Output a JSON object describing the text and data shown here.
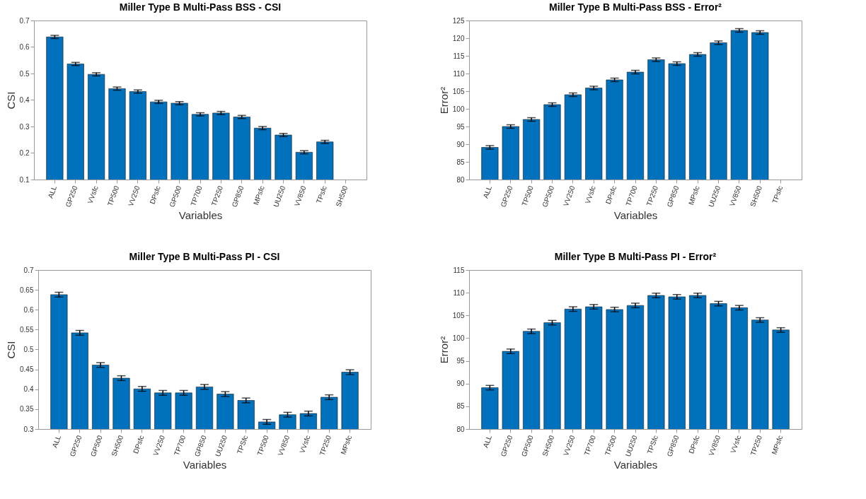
{
  "chart_data": [
    {
      "type": "bar",
      "title": "Miller Type B Multi-Pass BSS - CSI",
      "xlabel": "Variables",
      "ylabel": "CSI",
      "categories": [
        "ALL",
        "GP250",
        "VVsfc",
        "TP500",
        "VV250",
        "DPsfc",
        "GP500",
        "TP700",
        "TP250",
        "GP850",
        "MPsfc",
        "UU250",
        "VV850",
        "TPsfc",
        "SH500"
      ],
      "series": [
        {
          "color": "#0072bd",
          "values": [
            0.638,
            0.536,
            0.497,
            0.443,
            0.432,
            0.393,
            0.388,
            0.346,
            0.351,
            0.336,
            0.294,
            0.268,
            0.203,
            0.242,
            null
          ],
          "errors": [
            0.006,
            0.006,
            0.006,
            0.006,
            0.006,
            0.006,
            0.006,
            0.006,
            0.006,
            0.006,
            0.006,
            0.006,
            0.006,
            0.006,
            null
          ]
        }
      ],
      "ylim": [
        0.1,
        0.7
      ],
      "yticks": [
        0.1,
        0.2,
        0.3,
        0.4,
        0.5,
        0.6,
        0.7
      ],
      "grid": false
    },
    {
      "type": "bar",
      "title": "Miller Type B Multi-Pass BSS - Error²",
      "xlabel": "Variables",
      "ylabel": "Error²",
      "categories": [
        "ALL",
        "GP250",
        "TP500",
        "GP500",
        "VV250",
        "VVsfc",
        "DPsfc",
        "TP700",
        "TP250",
        "GP850",
        "MPsfc",
        "UU250",
        "VV850",
        "SH500",
        "TPsfc"
      ],
      "series": [
        {
          "color": "#0072bd",
          "values": [
            89.1,
            95.0,
            97.0,
            101.2,
            104.0,
            105.9,
            108.2,
            110.4,
            113.9,
            112.8,
            115.4,
            118.7,
            122.2,
            121.6,
            null
          ],
          "errors": [
            0.5,
            0.5,
            0.5,
            0.5,
            0.5,
            0.5,
            0.5,
            0.5,
            0.5,
            0.5,
            0.5,
            0.5,
            0.5,
            0.5,
            null
          ]
        }
      ],
      "ylim": [
        80,
        125
      ],
      "yticks": [
        80,
        85,
        90,
        95,
        100,
        105,
        110,
        115,
        120,
        125
      ],
      "grid": false
    },
    {
      "type": "bar",
      "title": "Miller Type B Multi-Pass PI - CSI",
      "xlabel": "Variables",
      "ylabel": "CSI",
      "categories": [
        "ALL",
        "GP250",
        "GP500",
        "SH500",
        "DPsfc",
        "VV250",
        "TP700",
        "GP850",
        "UU250",
        "TPSfc",
        "TP500",
        "VV850",
        "VVsfc",
        "TP250",
        "MPsfc"
      ],
      "series": [
        {
          "color": "#0072bd",
          "values": [
            0.638,
            0.542,
            0.461,
            0.428,
            0.401,
            0.391,
            0.391,
            0.406,
            0.388,
            0.372,
            0.318,
            0.336,
            0.339,
            0.38,
            0.443
          ],
          "errors": [
            0.006,
            0.006,
            0.006,
            0.006,
            0.006,
            0.006,
            0.006,
            0.006,
            0.006,
            0.006,
            0.006,
            0.006,
            0.006,
            0.006,
            0.006
          ]
        }
      ],
      "ylim": [
        0.3,
        0.7
      ],
      "yticks": [
        0.3,
        0.35,
        0.4,
        0.45,
        0.5,
        0.55,
        0.6,
        0.65,
        0.7
      ],
      "grid": false
    },
    {
      "type": "bar",
      "title": "Miller Type B Multi-Pass PI - Error²",
      "xlabel": "Variables",
      "ylabel": "Error²",
      "categories": [
        "ALL",
        "GP250",
        "GP500",
        "SH500",
        "VV250",
        "TP700",
        "TP500",
        "UU250",
        "TPSfc",
        "GP850",
        "DPsfc",
        "VV850",
        "VVsfc",
        "TP250",
        "MPsfc"
      ],
      "series": [
        {
          "color": "#0072bd",
          "values": [
            89.1,
            97.1,
            101.5,
            103.4,
            106.4,
            106.9,
            106.3,
            107.2,
            109.4,
            109.1,
            109.4,
            107.6,
            106.7,
            104.0,
            101.8
          ],
          "errors": [
            0.5,
            0.5,
            0.5,
            0.5,
            0.5,
            0.5,
            0.5,
            0.5,
            0.5,
            0.5,
            0.5,
            0.5,
            0.5,
            0.5,
            0.5
          ]
        }
      ],
      "ylim": [
        80,
        115
      ],
      "yticks": [
        80,
        85,
        90,
        95,
        100,
        105,
        110,
        115
      ],
      "grid": false
    }
  ]
}
